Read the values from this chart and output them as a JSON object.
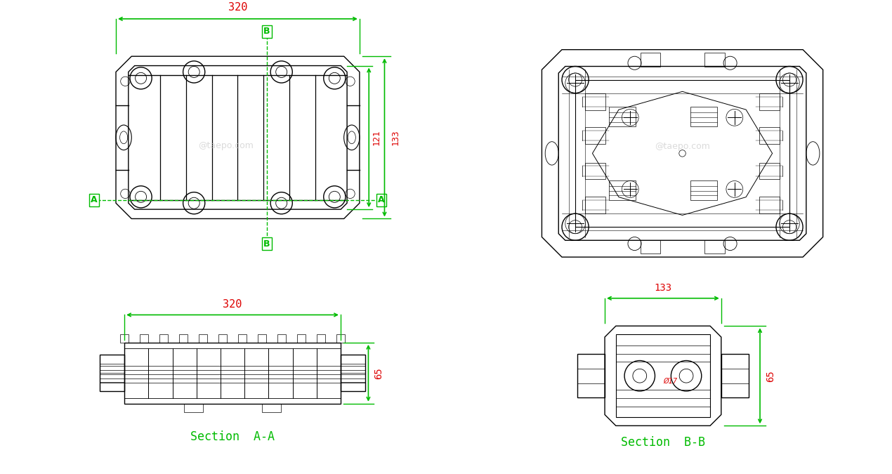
{
  "bg_color": "#ffffff",
  "line_color": "#000000",
  "green_color": "#00bb00",
  "red_color": "#dd0000",
  "dim1": "320",
  "dim2": "121",
  "dim3": "133",
  "dim4": "65",
  "dim5": "17",
  "section_aa": "Section  A-A",
  "section_bb": "Section  B-B",
  "watermark": "@taepo.com",
  "lw": 1.0
}
